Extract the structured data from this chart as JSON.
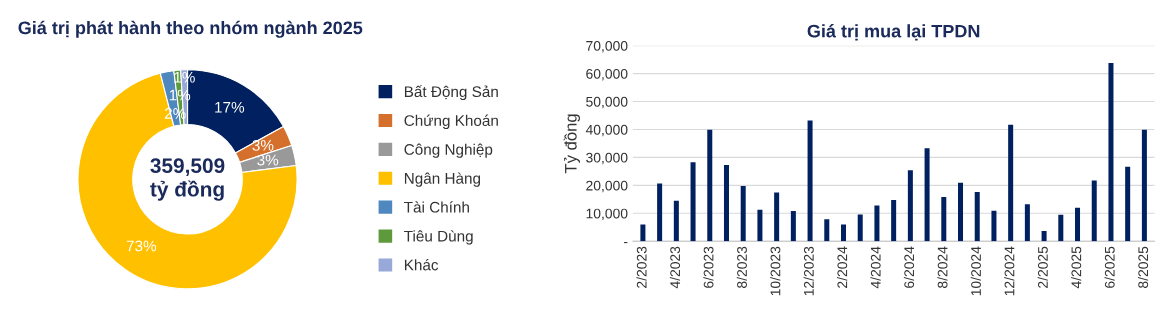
{
  "chart_data": [
    {
      "type": "donut",
      "title": "Giá trị phát hành theo nhóm ngành 2025",
      "categories": [
        "Bất Động Sản",
        "Chứng Khoán",
        "Công Nghiệp",
        "Ngân Hàng",
        "Tài Chính",
        "Tiêu Dùng",
        "Khác"
      ],
      "values": [
        17,
        3,
        3,
        73,
        2,
        1,
        1
      ],
      "value_labels": [
        "17%",
        "3%",
        "3%",
        "73%",
        "2%",
        "1%",
        "1%"
      ],
      "colors": [
        "#002060",
        "#d4702c",
        "#999999",
        "#ffc000",
        "#4f88bf",
        "#5e9a3c",
        "#98a8d8"
      ],
      "annotations": [
        "359,509\ntỷ đồng"
      ],
      "legend": "right"
    },
    {
      "type": "bar",
      "title": "Giá trị mua lại TPDN",
      "ylabel": "Tỷ đồng",
      "categories": [
        "2/2023",
        null,
        "4/2023",
        null,
        "6/2023",
        null,
        "8/2023",
        null,
        "10/2023",
        null,
        "12/2023",
        null,
        "2/2024",
        null,
        "4/2024",
        null,
        "6/2024",
        null,
        "8/2024",
        null,
        "10/2024",
        null,
        "12/2024",
        null,
        "2/2025",
        null,
        "4/2025",
        null,
        "6/2025",
        null,
        "8/2025"
      ],
      "values": [
        6000,
        20700,
        14500,
        28300,
        39900,
        27300,
        19800,
        11300,
        17400,
        10800,
        43200,
        7900,
        6000,
        9600,
        12800,
        14800,
        25400,
        33300,
        15800,
        20900,
        17600,
        10900,
        41700,
        13200,
        3700,
        9500,
        12000,
        21700,
        63800,
        26700,
        39900
      ],
      "color": "#002060",
      "ylim": [
        0,
        70000
      ],
      "yticks": [
        {
          "value": 0,
          "label": "-"
        },
        {
          "value": 10000,
          "label": "10,000"
        },
        {
          "value": 20000,
          "label": "20,000"
        },
        {
          "value": 30000,
          "label": "30,000"
        },
        {
          "value": 40000,
          "label": "40,000"
        },
        {
          "value": 50000,
          "label": "50,000"
        },
        {
          "value": 60000,
          "label": "60,000"
        },
        {
          "value": 70000,
          "label": "70,000"
        }
      ],
      "grid": "y"
    }
  ]
}
